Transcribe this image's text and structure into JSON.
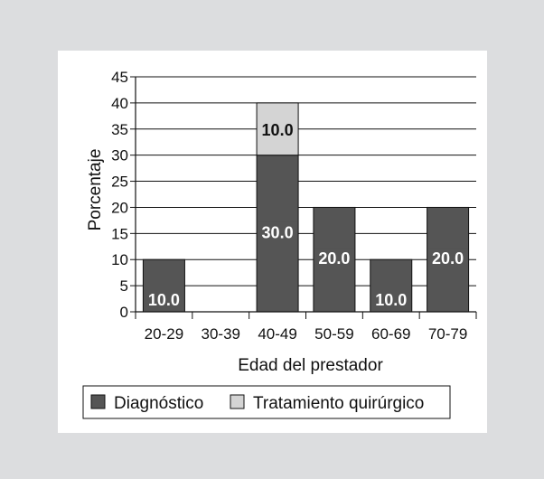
{
  "chart_data": {
    "type": "bar",
    "stacked": true,
    "categories": [
      "20-29",
      "30-39",
      "40-49",
      "50-59",
      "60-69",
      "70-79"
    ],
    "series": [
      {
        "name": "Diagnóstico",
        "values": [
          10.0,
          0,
          30.0,
          20.0,
          10.0,
          20.0
        ],
        "labels": [
          "10.0",
          "",
          "30.0",
          "20.0",
          "10.0",
          "20.0"
        ],
        "color": "#555555",
        "label_color": "#ffffff"
      },
      {
        "name": "Tratamiento quirúrgico",
        "values": [
          0,
          0,
          10.0,
          0,
          0,
          0
        ],
        "labels": [
          "",
          "",
          "10.0",
          "",
          "",
          ""
        ],
        "color": "#d4d4d4",
        "label_color": "#111111"
      }
    ],
    "title": "",
    "xlabel": "Edad del prestador",
    "ylabel": "Porcentaje",
    "ylim": [
      0,
      45
    ],
    "yticks": [
      0,
      5,
      10,
      15,
      20,
      25,
      30,
      35,
      40,
      45
    ],
    "grid": true,
    "legend_position": "bottom"
  }
}
